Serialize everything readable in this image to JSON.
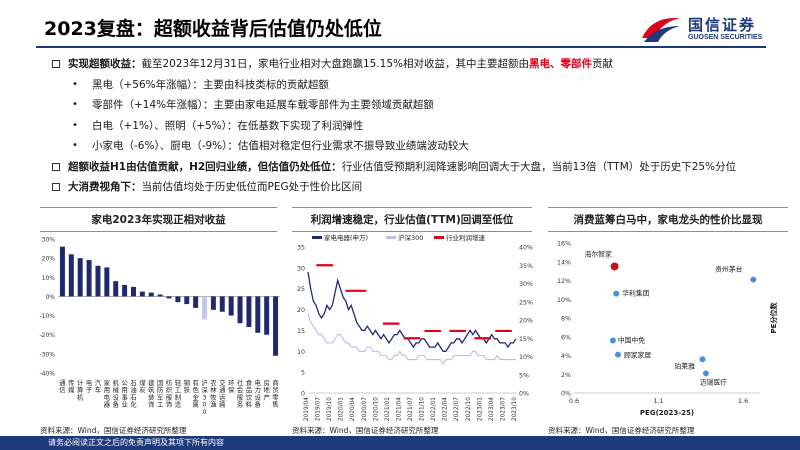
{
  "page": {
    "title": "2023复盘：超额收益背后估值仍处低位",
    "footer": "请务必阅读正文之后的免责声明及其项下所有内容"
  },
  "logo": {
    "cn": "国信证券",
    "en": "GUOSEN SECURITIES",
    "colors": {
      "navy": "#1f3a7a",
      "red": "#e0001a"
    }
  },
  "bullets": {
    "b1_head": "实现超额收益：",
    "b1_body": "截至2023年12月31日，家电行业相对大盘跑赢15.15%相对收益，其中主要超额由",
    "b1_red": "黑电、零部件",
    "b1_tail": "贡献",
    "s1": "黑电（+56%年涨幅）：主要由科技类标的贡献超额",
    "s2": "零部件（+14%年涨幅）：主要由家电延展车载零部件为主要领域贡献超额",
    "s3": "白电（+1%）、照明（+5%）：在低基数下实现了利润弹性",
    "s4": "小家电（-6%）、厨电（-9%）：估值相对稳定但行业需求不振导致业绩端波动较大",
    "b2_head": "超额收益H1由估值贡献，H2回归业绩，但估值仍处低位：",
    "b2_body": "行业估值受预期利润降速影响回调大于大盘，当前13倍（TTM）处于历史下25%分位",
    "b3_head": "大消费视角下：",
    "b3_body": "当前估值均处于历史低位而PEG处于性价比区间"
  },
  "panels": {
    "p1_title": "家电2023年实现正相对收益",
    "p2_title": "利润增速稳定，行业估值(TTM)回调至低位",
    "p3_title": "消费蓝筹白马中，家电龙头的性价比显现",
    "source": "资料来源：Wind，国信证券经济研究所整理"
  },
  "chart_data": [
    {
      "type": "bar",
      "categories": [
        "通信",
        "传媒",
        "计算机",
        "电子",
        "汽车",
        "家用电器",
        "机械设备",
        "公用事业",
        "石油石化",
        "煤炭",
        "建筑装饰",
        "国防军工",
        "纺织服饰",
        "轻工制造",
        "钢铁",
        "有色金属",
        "沪深300",
        "农林牧渔",
        "交通运输",
        "环保",
        "社会服务",
        "食品饮料",
        "电力设备",
        "房地产",
        "商贸零售"
      ],
      "values": [
        26,
        22,
        20,
        19,
        16,
        15.15,
        8,
        6,
        5,
        2.5,
        2,
        1,
        -1,
        -3,
        -4,
        -6,
        -12,
        -7,
        -8,
        -10,
        -14,
        -16,
        -19,
        -20,
        -31
      ],
      "highlight_color": "#c4c9ea",
      "bar_color": "#1f2a6e",
      "highlight": [
        "沪深300"
      ],
      "ylim": [
        -40,
        30
      ],
      "yticks": [
        "30%",
        "20%",
        "10%",
        "0%",
        "-10%",
        "-20%",
        "-30%",
        "-40%"
      ]
    },
    {
      "type": "line",
      "series": [
        {
          "name": "家电电器(申万)",
          "color": "#1f2a6e",
          "values": [
            29,
            25,
            22,
            21,
            19,
            18,
            19,
            21,
            20,
            21,
            24,
            27,
            25,
            23,
            22,
            20,
            21,
            19,
            17,
            16,
            15,
            15,
            16,
            15,
            14,
            15,
            14,
            13,
            14,
            13,
            12,
            13,
            14,
            14,
            15,
            14,
            13,
            13,
            12,
            11,
            12,
            12,
            13,
            13,
            12,
            11,
            11,
            11,
            12,
            11,
            10,
            10,
            11,
            12,
            12,
            13,
            13,
            12,
            13,
            14,
            15,
            14,
            15,
            14,
            13,
            13,
            12,
            13,
            14,
            13,
            13,
            12,
            12,
            12,
            11,
            12,
            12,
            13
          ]
        },
        {
          "name": "沪深300",
          "color": "#b9bde8",
          "values": [
            19,
            17,
            16,
            15,
            14,
            14,
            13,
            12,
            12,
            12,
            13,
            14,
            14,
            13,
            12,
            12,
            11,
            11,
            11,
            10,
            10,
            10,
            11,
            11,
            10,
            10,
            10,
            9,
            9,
            9,
            8,
            8,
            9,
            9,
            10,
            9,
            9,
            8,
            8,
            8,
            8,
            9,
            9,
            9,
            8,
            8,
            8,
            8,
            8,
            8,
            7,
            8,
            8,
            8,
            9,
            9,
            9,
            9,
            9,
            9,
            9,
            10,
            10,
            9,
            9,
            9,
            8,
            8,
            8,
            8,
            9,
            8,
            8,
            8,
            8,
            8,
            8,
            8
          ]
        },
        {
          "name": "行业利润增速",
          "color": "#e0001a",
          "segments": [
            [
              0.04,
              0.12,
              35
            ],
            [
              0.18,
              0.28,
              28
            ],
            [
              0.36,
              0.44,
              19
            ],
            [
              0.46,
              0.54,
              15
            ],
            [
              0.56,
              0.64,
              17
            ],
            [
              0.68,
              0.76,
              17
            ],
            [
              0.8,
              0.88,
              15
            ],
            [
              0.9,
              0.98,
              17
            ]
          ]
        }
      ],
      "ylim_left": [
        0,
        35
      ],
      "yticks_left": [
        "35",
        "30",
        "25",
        "20",
        "15",
        "10",
        "5",
        "0"
      ],
      "ylim_right": [
        0,
        40
      ],
      "yticks_right": [
        "40%",
        "35%",
        "30%",
        "25%",
        "20%",
        "15%",
        "10%",
        "5%",
        "0%"
      ],
      "xticks": [
        "2019/04",
        "2019/07",
        "2019/10",
        "2020/01",
        "2020/04",
        "2020/07",
        "2020/10",
        "2021/01",
        "2021/04",
        "2021/07",
        "2021/10",
        "2022/01",
        "2022/04",
        "2022/07",
        "2022/10",
        "2023/01",
        "2023/04",
        "2023/07",
        "2023/10"
      ]
    },
    {
      "type": "scatter",
      "xlabel": "PEG(2023-25)",
      "ylabel": "PE分位数",
      "xlim": [
        0.6,
        1.7
      ],
      "ylim": [
        0,
        16
      ],
      "xticks": [
        "0.6",
        "1.1",
        "1.6"
      ],
      "yticks": [
        "16%",
        "14%",
        "12%",
        "10%",
        "8%",
        "6%",
        "4%",
        "2%",
        "0%"
      ],
      "points": [
        {
          "label": "海尔智家",
          "x": 0.84,
          "y": 13.5,
          "color": "#c0121a"
        },
        {
          "label": "贵州茅台",
          "x": 1.66,
          "y": 12.1,
          "color": "#4a90d9"
        },
        {
          "label": "华利集团",
          "x": 0.85,
          "y": 10.6,
          "color": "#4a90d9"
        },
        {
          "label": "中国中免",
          "x": 0.83,
          "y": 5.6,
          "color": "#4a90d9"
        },
        {
          "label": "顾家家居",
          "x": 0.86,
          "y": 4.1,
          "color": "#4a90d9"
        },
        {
          "label": "珀莱雅",
          "x": 1.36,
          "y": 3.6,
          "color": "#4a90d9"
        },
        {
          "label": "迈瑞医疗",
          "x": 1.38,
          "y": 2.1,
          "color": "#4a90d9"
        }
      ]
    }
  ]
}
